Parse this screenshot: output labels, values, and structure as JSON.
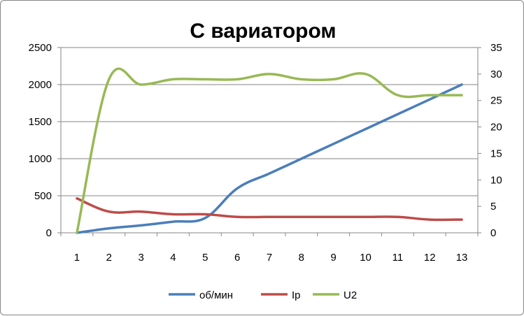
{
  "chart_data": {
    "type": "line",
    "title": "С вариатором",
    "xlabel": "",
    "ylabel": "",
    "categories": [
      "1",
      "2",
      "3",
      "4",
      "5",
      "6",
      "7",
      "8",
      "9",
      "10",
      "11",
      "12",
      "13"
    ],
    "y_left": {
      "ylim": [
        0,
        2500
      ],
      "ticks": [
        "0",
        "500",
        "1000",
        "1500",
        "2000",
        "2500"
      ]
    },
    "y_right": {
      "ylim": [
        0,
        35
      ],
      "ticks": [
        "0",
        "5",
        "10",
        "15",
        "20",
        "25",
        "30",
        "35"
      ]
    },
    "grid": "horizontal",
    "legend": "bottom",
    "series": [
      {
        "name": "об/мин",
        "axis": "left",
        "color": "#4A7EBB",
        "values": [
          0,
          60,
          100,
          150,
          200,
          600,
          800,
          1000,
          1200,
          1400,
          1600,
          1800,
          2000
        ]
      },
      {
        "name": "Ip",
        "axis": "right",
        "color": "#BE4B48",
        "values": [
          6.5,
          4.0,
          4.0,
          3.5,
          3.5,
          3.0,
          3.0,
          3.0,
          3.0,
          3.0,
          3.0,
          2.5,
          2.5
        ]
      },
      {
        "name": "U2",
        "axis": "right",
        "color": "#98B954",
        "values": [
          0,
          29,
          28,
          29,
          29,
          29,
          30,
          29,
          29,
          30,
          26,
          26,
          26
        ]
      }
    ]
  }
}
